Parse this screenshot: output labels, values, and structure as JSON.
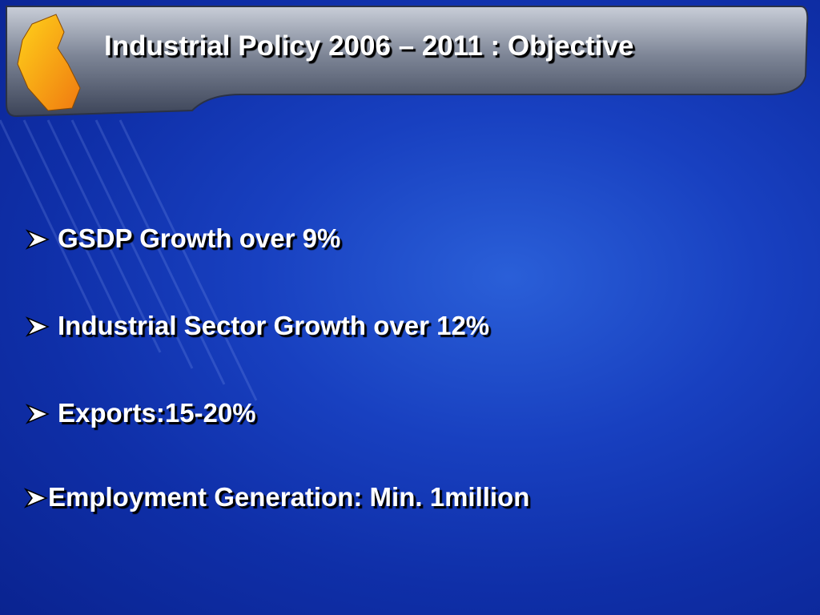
{
  "header": {
    "title": "Industrial Policy 2006 – 2011 : Objective"
  },
  "bullets": [
    "GSDP Growth over 9%",
    "Industrial Sector Growth over 12%",
    "Exports:15-20%",
    "Employment Generation: Min. 1million"
  ]
}
